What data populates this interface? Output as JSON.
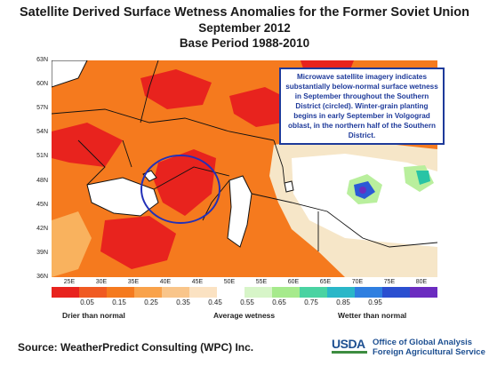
{
  "title": {
    "line1": "Satellite Derived Surface Wetness Anomalies for the Former Soviet Union",
    "line2": "September 2012",
    "line3": "Base Period 1988-2010"
  },
  "map": {
    "lat_labels": [
      "63N",
      "60N",
      "57N",
      "54N",
      "51N",
      "48N",
      "45N",
      "42N",
      "39N",
      "36N"
    ],
    "lon_labels": [
      "25E",
      "30E",
      "35E",
      "40E",
      "45E",
      "50E",
      "55E",
      "60E",
      "65E",
      "70E",
      "75E",
      "80E"
    ],
    "colors": {
      "red": "#e8231e",
      "orange": "#f57a1e",
      "light_orange": "#f9b25e",
      "pale": "#f6e6c8",
      "white": "#ffffff",
      "light_green": "#b9ef9d",
      "teal": "#28c4a5",
      "blue": "#2b59d6",
      "purple": "#6b2cc0",
      "sea": "#ffffff",
      "circle": "#2230b8",
      "border": "#111111"
    },
    "callout": "Microwave satellite imagery indicates substantially below-normal surface wetness in September throughout the Southern District (circled).  Winter-grain planting begins in early September in Volgograd oblast, in the northern half of the Southern District."
  },
  "legend": {
    "colors": [
      "#e8231e",
      "#f05a22",
      "#f57a1e",
      "#f9a24a",
      "#f9c58a",
      "#fbe2c2",
      "#ffffff",
      "#d7f5c8",
      "#a6ea8c",
      "#4ad3a2",
      "#2ab7c8",
      "#2f7fe0",
      "#2b4fd0",
      "#6b2cc0"
    ],
    "values": [
      "0.05",
      "0.15",
      "0.25",
      "0.35",
      "0.45",
      "0.55",
      "0.65",
      "0.75",
      "0.85",
      "0.95"
    ],
    "left_caption": "Drier than normal",
    "mid_caption": "Average wetness",
    "right_caption": "Wetter than normal"
  },
  "footer": {
    "source": "Source: WeatherPredict Consulting (WPC) Inc.",
    "usda_logo": "USDA",
    "office_line1": "Office of Global Analysis",
    "office_line2": "Foreign Agricultural Service"
  }
}
